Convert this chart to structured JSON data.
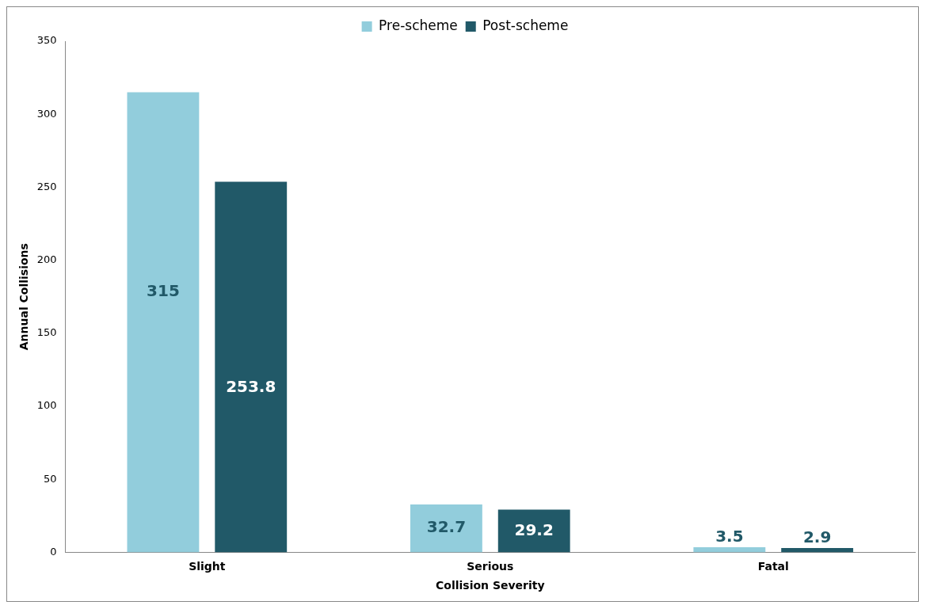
{
  "chart_data": {
    "type": "bar",
    "xlabel": "Collision Severity",
    "ylabel": "Annual Collisions",
    "categories": [
      "Slight",
      "Serious",
      "Fatal"
    ],
    "series": [
      {
        "name": "Pre-scheme",
        "color": "#92cddc",
        "values": [
          315,
          32.7,
          3.5
        ]
      },
      {
        "name": "Post-scheme",
        "color": "#215968",
        "values": [
          253.8,
          29.2,
          2.9
        ]
      }
    ],
    "ylim": [
      0,
      350
    ],
    "yticks": [
      0,
      50,
      100,
      150,
      200,
      250,
      300,
      350
    ],
    "grid": false,
    "legend": "top",
    "data_labels": true
  }
}
